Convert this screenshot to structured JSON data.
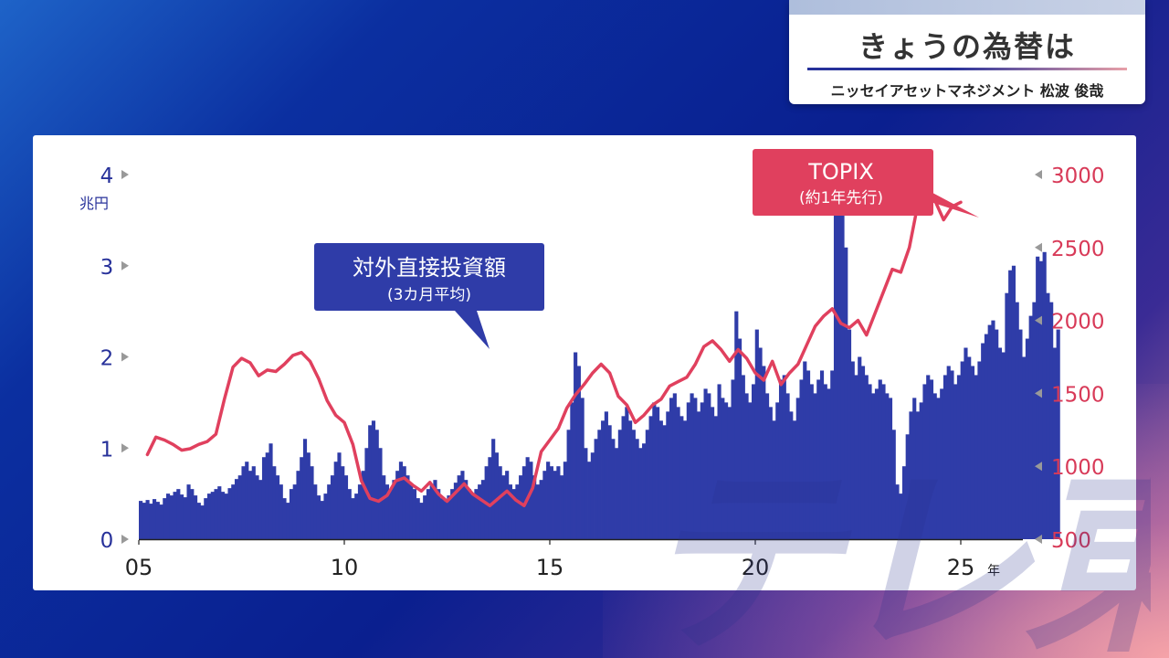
{
  "header": {
    "title": "きょうの為替は",
    "subtitle": "ニッセイアセットマネジメント 松波 俊哉"
  },
  "watermark": "テレ東",
  "colors": {
    "bar": "#2f3ca8",
    "line": "#e0405e",
    "left_axis": "#27319a",
    "right_axis": "#d83a58"
  },
  "chart_data": {
    "type": "bar+line",
    "x_ticks": [
      "05",
      "10",
      "15",
      "20",
      "25"
    ],
    "x_unit": "年",
    "xlim": [
      2005,
      2026.5
    ],
    "left_axis": {
      "unit": "兆円",
      "ticks": [
        "0",
        "1",
        "2",
        "3",
        "4"
      ],
      "ylim": [
        0,
        4
      ]
    },
    "right_axis": {
      "ticks": [
        "500",
        "1000",
        "1500",
        "2000",
        "2500",
        "3000"
      ],
      "ylim": [
        500,
        3000
      ]
    },
    "annotations": [
      {
        "series": "bar",
        "text": "対外直接投資額",
        "subtext": "(3カ月平均)"
      },
      {
        "series": "line",
        "text": "TOPIX",
        "subtext": "(約1年先行)"
      }
    ],
    "bar_series": {
      "label": "対外直接投資額",
      "start_year": 2005.0,
      "step_years": 0.0833,
      "values": [
        0.42,
        0.4,
        0.43,
        0.39,
        0.44,
        0.41,
        0.38,
        0.45,
        0.5,
        0.48,
        0.52,
        0.55,
        0.49,
        0.46,
        0.6,
        0.55,
        0.48,
        0.4,
        0.37,
        0.45,
        0.5,
        0.52,
        0.55,
        0.58,
        0.52,
        0.5,
        0.56,
        0.6,
        0.66,
        0.7,
        0.8,
        0.85,
        0.75,
        0.8,
        0.7,
        0.65,
        0.9,
        0.95,
        1.05,
        0.8,
        0.7,
        0.6,
        0.45,
        0.4,
        0.55,
        0.6,
        0.75,
        0.9,
        1.1,
        0.95,
        0.8,
        0.6,
        0.48,
        0.42,
        0.5,
        0.6,
        0.7,
        0.85,
        0.95,
        0.8,
        0.7,
        0.55,
        0.45,
        0.5,
        0.6,
        0.75,
        1.0,
        1.25,
        1.3,
        1.2,
        1.0,
        0.7,
        0.6,
        0.55,
        0.65,
        0.75,
        0.85,
        0.8,
        0.7,
        0.6,
        0.55,
        0.45,
        0.4,
        0.48,
        0.55,
        0.6,
        0.65,
        0.55,
        0.45,
        0.42,
        0.48,
        0.55,
        0.62,
        0.7,
        0.75,
        0.65,
        0.55,
        0.5,
        0.55,
        0.6,
        0.65,
        0.8,
        0.9,
        1.1,
        0.95,
        0.8,
        0.7,
        0.75,
        0.6,
        0.55,
        0.6,
        0.7,
        0.8,
        0.9,
        0.85,
        0.7,
        0.6,
        0.65,
        0.75,
        0.85,
        0.8,
        0.75,
        0.8,
        0.7,
        0.85,
        1.2,
        1.5,
        2.05,
        1.9,
        1.55,
        1.0,
        0.85,
        0.95,
        1.1,
        1.2,
        1.3,
        1.4,
        1.25,
        1.1,
        1.0,
        1.2,
        1.35,
        1.45,
        1.3,
        1.2,
        1.1,
        1.0,
        1.05,
        1.2,
        1.35,
        1.5,
        1.45,
        1.3,
        1.25,
        1.4,
        1.55,
        1.6,
        1.45,
        1.35,
        1.3,
        1.5,
        1.6,
        1.55,
        1.4,
        1.5,
        1.65,
        1.6,
        1.45,
        1.35,
        1.7,
        1.55,
        1.5,
        1.45,
        1.75,
        2.5,
        2.2,
        1.8,
        1.6,
        1.5,
        1.7,
        2.3,
        2.1,
        1.9,
        1.6,
        1.45,
        1.3,
        1.5,
        1.75,
        1.8,
        1.6,
        1.4,
        1.3,
        1.55,
        1.75,
        1.95,
        1.85,
        1.7,
        1.6,
        1.75,
        1.85,
        1.7,
        1.65,
        1.85,
        3.7,
        3.55,
        3.8,
        3.2,
        2.3,
        1.95,
        1.8,
        2.0,
        1.9,
        1.8,
        1.7,
        1.6,
        1.65,
        1.75,
        1.7,
        1.6,
        1.55,
        1.2,
        0.6,
        0.5,
        0.8,
        1.15,
        1.4,
        1.55,
        1.4,
        1.5,
        1.7,
        1.8,
        1.75,
        1.6,
        1.55,
        1.65,
        1.8,
        1.9,
        1.85,
        1.7,
        1.8,
        1.95,
        2.1,
        2.0,
        1.9,
        1.8,
        1.95,
        2.15,
        2.25,
        2.35,
        2.4,
        2.3,
        2.1,
        2.05,
        2.7,
        2.95,
        3.0,
        2.6,
        2.3,
        2.0,
        2.2,
        2.45,
        2.6,
        3.1,
        3.05,
        3.15,
        2.7,
        2.6,
        2.1,
        2.3
      ]
    },
    "line_series": {
      "label": "TOPIX",
      "points": [
        [
          2005.25,
          1080
        ],
        [
          2005.5,
          1200
        ],
        [
          2005.75,
          1180
        ],
        [
          2006.0,
          1150
        ],
        [
          2006.25,
          1110
        ],
        [
          2006.5,
          1120
        ],
        [
          2006.75,
          1150
        ],
        [
          2007.0,
          1170
        ],
        [
          2007.25,
          1220
        ],
        [
          2007.5,
          1460
        ],
        [
          2007.75,
          1680
        ],
        [
          2008.0,
          1740
        ],
        [
          2008.25,
          1710
        ],
        [
          2008.5,
          1620
        ],
        [
          2008.75,
          1660
        ],
        [
          2009.0,
          1650
        ],
        [
          2009.25,
          1700
        ],
        [
          2009.5,
          1760
        ],
        [
          2009.75,
          1780
        ],
        [
          2010.0,
          1720
        ],
        [
          2010.25,
          1600
        ],
        [
          2010.5,
          1450
        ],
        [
          2010.75,
          1350
        ],
        [
          2011.0,
          1300
        ],
        [
          2011.25,
          1150
        ],
        [
          2011.5,
          900
        ],
        [
          2011.75,
          780
        ],
        [
          2012.0,
          760
        ],
        [
          2012.25,
          800
        ],
        [
          2012.5,
          900
        ],
        [
          2012.75,
          920
        ],
        [
          2013.0,
          870
        ],
        [
          2013.25,
          830
        ],
        [
          2013.5,
          890
        ],
        [
          2013.75,
          810
        ],
        [
          2014.0,
          760
        ],
        [
          2014.25,
          820
        ],
        [
          2014.5,
          880
        ],
        [
          2014.75,
          810
        ],
        [
          2015.0,
          770
        ],
        [
          2015.25,
          730
        ],
        [
          2015.5,
          780
        ],
        [
          2015.75,
          830
        ],
        [
          2016.0,
          770
        ],
        [
          2016.25,
          730
        ],
        [
          2016.5,
          850
        ],
        [
          2016.75,
          1100
        ],
        [
          2017.0,
          1180
        ],
        [
          2017.25,
          1260
        ],
        [
          2017.5,
          1400
        ],
        [
          2017.75,
          1490
        ],
        [
          2018.0,
          1560
        ],
        [
          2018.25,
          1640
        ],
        [
          2018.5,
          1700
        ],
        [
          2018.75,
          1640
        ],
        [
          2019.0,
          1480
        ],
        [
          2019.25,
          1420
        ],
        [
          2019.5,
          1300
        ],
        [
          2019.75,
          1350
        ],
        [
          2020.0,
          1420
        ],
        [
          2020.25,
          1460
        ],
        [
          2020.5,
          1550
        ],
        [
          2020.75,
          1580
        ],
        [
          2021.0,
          1610
        ],
        [
          2021.25,
          1700
        ],
        [
          2021.5,
          1820
        ],
        [
          2021.75,
          1860
        ],
        [
          2022.0,
          1800
        ],
        [
          2022.25,
          1720
        ],
        [
          2022.5,
          1800
        ],
        [
          2022.75,
          1740
        ],
        [
          2023.0,
          1640
        ],
        [
          2023.25,
          1590
        ],
        [
          2023.5,
          1720
        ],
        [
          2023.75,
          1560
        ],
        [
          2024.0,
          1640
        ],
        [
          2024.25,
          1700
        ],
        [
          2024.5,
          1830
        ],
        [
          2024.75,
          1960
        ],
        [
          2025.0,
          2030
        ],
        [
          2025.25,
          2080
        ],
        [
          2025.5,
          1980
        ],
        [
          2025.75,
          1950
        ],
        [
          2026.0,
          2000
        ],
        [
          2026.25,
          1900
        ],
        [
          2026.5,
          2050
        ],
        [
          2026.75,
          2200
        ],
        [
          2027.0,
          2350
        ],
        [
          2027.25,
          2330
        ],
        [
          2027.5,
          2500
        ],
        [
          2027.75,
          2800
        ],
        [
          2028.0,
          2860
        ],
        [
          2028.25,
          2820
        ],
        [
          2028.5,
          2690
        ],
        [
          2028.75,
          2780
        ],
        [
          2029.0,
          2810
        ]
      ],
      "note": "x values are shifted one year ahead to reflect the 1-year lead"
    }
  }
}
